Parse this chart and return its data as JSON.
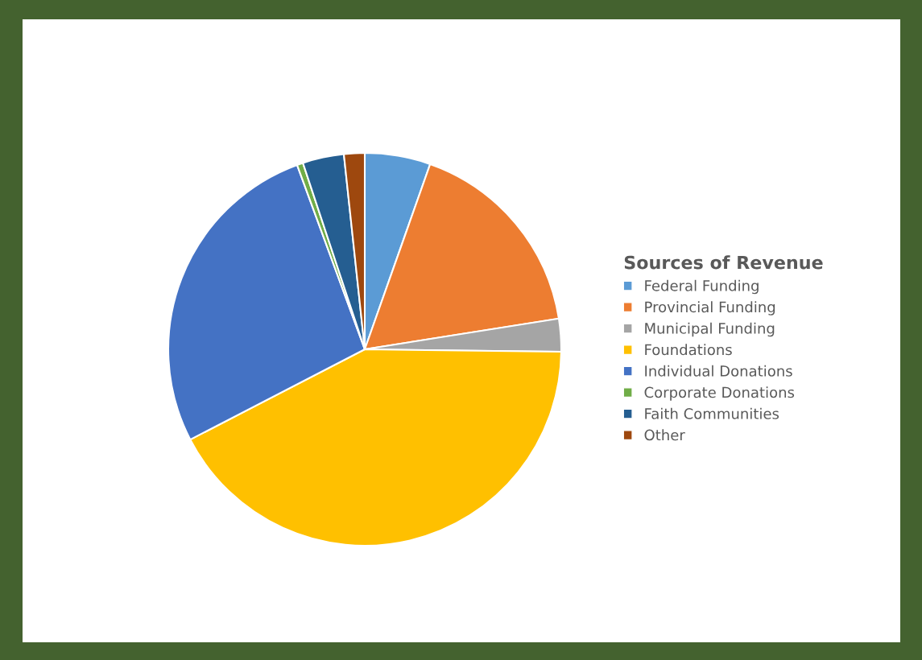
{
  "chart_data": {
    "type": "pie",
    "legend_title": "Sources of Revenue",
    "legend": "right",
    "categories": [
      "Federal Funding",
      "Provincial Funding",
      "Municipal Funding",
      "Foundations",
      "Individual Donations",
      "Corporate Donations",
      "Faith Communities",
      "Other"
    ],
    "values": [
      5.4,
      17.1,
      2.7,
      42.2,
      27.0,
      0.5,
      3.4,
      1.7
    ],
    "colors": [
      "#5b9bd5",
      "#ed7d31",
      "#a5a5a5",
      "#ffc000",
      "#4472c4",
      "#70ad47",
      "#255e91",
      "#9e480e"
    ]
  }
}
